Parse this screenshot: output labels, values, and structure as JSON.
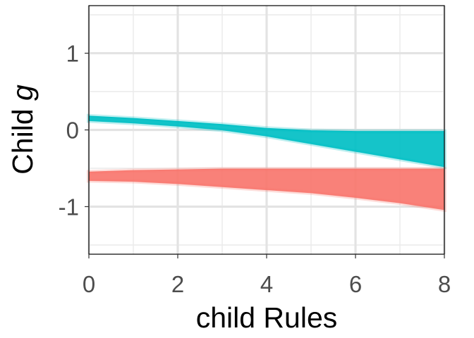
{
  "chart_data": {
    "type": "area",
    "xlabel": "child Rules",
    "ylabel_text": "Child ",
    "ylabel_var": "g",
    "xlim": [
      0,
      8
    ],
    "ylim": [
      -1.62,
      1.62
    ],
    "x_ticks": [
      0,
      2,
      4,
      6,
      8
    ],
    "x_tick_labels": [
      "0",
      "2",
      "4",
      "6",
      "8"
    ],
    "y_ticks": [
      -1,
      0,
      1
    ],
    "y_tick_labels": [
      "-1",
      "0",
      "1"
    ],
    "grid": true,
    "legend": "none",
    "series": [
      {
        "color": "#00BFC4",
        "x": [
          0,
          1,
          2,
          3,
          4,
          5,
          6,
          7,
          8
        ],
        "upper": [
          0.18,
          0.15,
          0.11,
          0.07,
          0.02,
          -0.01,
          -0.02,
          -0.02,
          -0.02
        ],
        "lower": [
          0.12,
          0.09,
          0.05,
          0.0,
          -0.08,
          -0.18,
          -0.28,
          -0.38,
          -0.48
        ]
      },
      {
        "color": "#F8766D",
        "x": [
          0,
          1,
          2,
          3,
          4,
          5,
          6,
          7,
          8
        ],
        "upper": [
          -0.55,
          -0.53,
          -0.52,
          -0.51,
          -0.51,
          -0.51,
          -0.51,
          -0.51,
          -0.51
        ],
        "lower": [
          -0.66,
          -0.67,
          -0.7,
          -0.74,
          -0.78,
          -0.82,
          -0.88,
          -0.95,
          -1.04
        ]
      }
    ]
  }
}
